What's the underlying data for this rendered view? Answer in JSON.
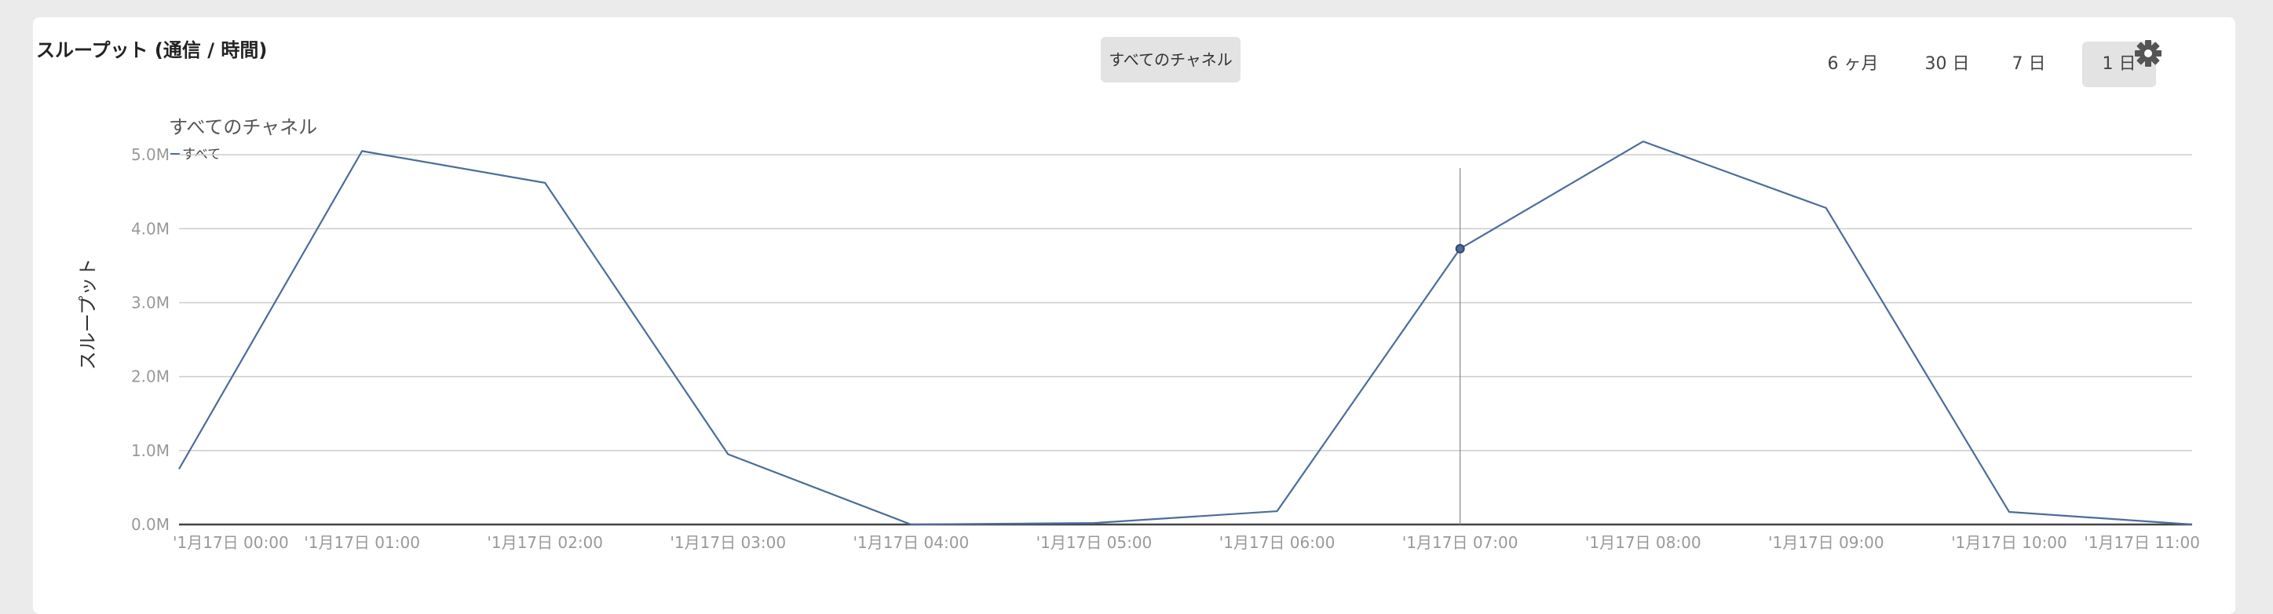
{
  "panel": {
    "title": "スループット (通信 / 時間)",
    "channel_button_label": "すべてのチャネル"
  },
  "time_ranges": [
    {
      "label": "6 ヶ月",
      "active": false
    },
    {
      "label": "30 日",
      "active": false
    },
    {
      "label": "7 日",
      "active": false
    },
    {
      "label": "1 日",
      "active": true
    }
  ],
  "settings_icon": "gear-icon",
  "colors": {
    "line": "#4c6d99",
    "grid": "#cccccc",
    "axis": "#444444",
    "active_range_bg": "#e3e3e3"
  },
  "chart_data": {
    "type": "line",
    "title": "",
    "subtitle": "すべてのチャネル",
    "ylabel": "スループット",
    "xlabel": "",
    "legend": {
      "placement": "top-left",
      "entries": [
        "すべて"
      ]
    },
    "categories": [
      "'1月17日 00:00",
      "'1月17日 01:00",
      "'1月17日 02:00",
      "'1月17日 03:00",
      "'1月17日 04:00",
      "'1月17日 05:00",
      "'1月17日 06:00",
      "'1月17日 07:00",
      "'1月17日 08:00",
      "'1月17日 09:00",
      "'1月17日 10:00",
      "'1月17日 11:00"
    ],
    "series": [
      {
        "name": "すべて",
        "values": [
          0.75,
          5.05,
          4.62,
          0.95,
          0.0,
          0.02,
          0.18,
          3.73,
          5.18,
          4.28,
          0.17,
          0.0
        ]
      }
    ],
    "y_ticks": [
      "0.0M",
      "1.0M",
      "2.0M",
      "3.0M",
      "4.0M",
      "5.0M"
    ],
    "ylim": [
      0,
      5.5
    ],
    "grid": true,
    "hover_index": 7
  }
}
